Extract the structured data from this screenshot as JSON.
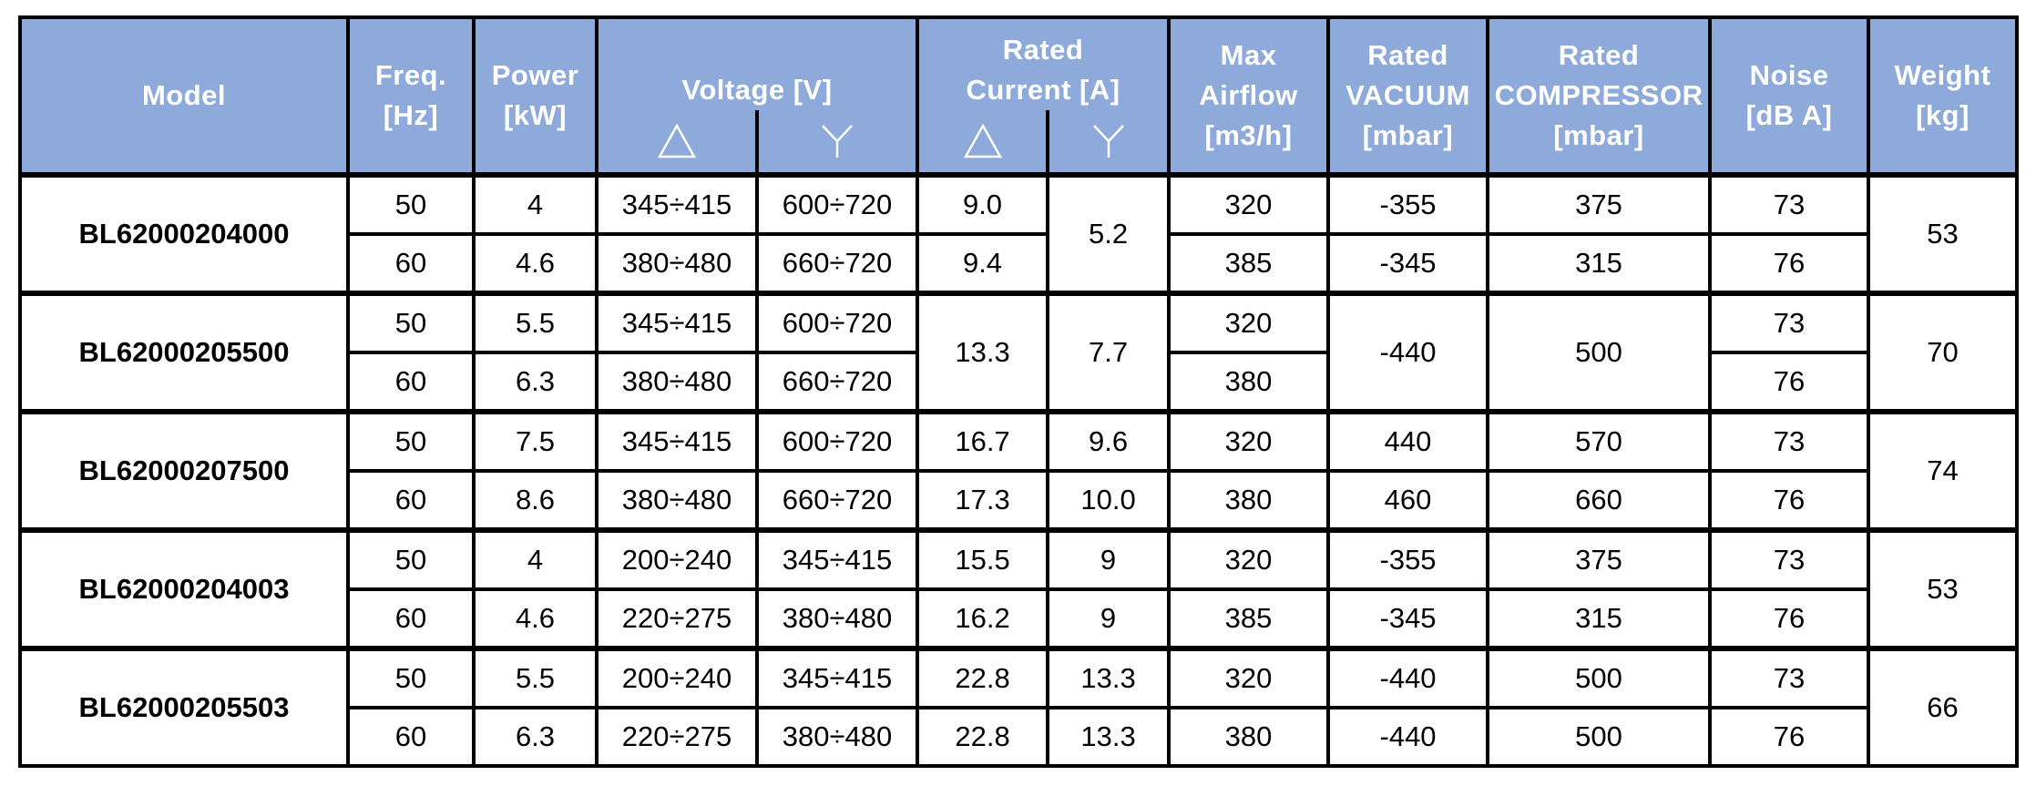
{
  "header": {
    "model": "Model",
    "freq": [
      "Freq.",
      "[Hz]"
    ],
    "power": [
      "Power",
      "[kW]"
    ],
    "voltage": "Voltage [V]",
    "rated_current": [
      "Rated",
      "Current [A]"
    ],
    "max_airflow": [
      "Max",
      "Airflow",
      "[m3/h]"
    ],
    "rated_vacuum": [
      "Rated",
      "VACUUM",
      "[mbar]"
    ],
    "rated_compressor": [
      "Rated",
      "COMPRESSOR",
      "[mbar]"
    ],
    "noise": [
      "Noise",
      "[dB A]"
    ],
    "weight": [
      "Weight",
      "[kg]"
    ],
    "delta_icon": "delta-connection-icon",
    "star_icon": "star-connection-icon"
  },
  "models": [
    {
      "name": "BL62000204000",
      "weight": "53",
      "rows": [
        {
          "freq": "50",
          "power": "4",
          "v_delta": "345÷415",
          "v_star": "600÷720",
          "i_delta": "9.0",
          "i_star": "5.2",
          "airflow": "320",
          "vacuum": "-355",
          "compressor": "375",
          "noise": "73"
        },
        {
          "freq": "60",
          "power": "4.6",
          "v_delta": "380÷480",
          "v_star": "660÷720",
          "i_delta": "9.4",
          "i_star": "5.2",
          "airflow": "385",
          "vacuum": "-345",
          "compressor": "315",
          "noise": "76"
        }
      ]
    },
    {
      "name": "BL62000205500",
      "weight": "70",
      "rows": [
        {
          "freq": "50",
          "power": "5.5",
          "v_delta": "345÷415",
          "v_star": "600÷720",
          "i_delta": "13.3",
          "i_star": "7.7",
          "airflow": "320",
          "vacuum": "-440",
          "compressor": "500",
          "noise": "73"
        },
        {
          "freq": "60",
          "power": "6.3",
          "v_delta": "380÷480",
          "v_star": "660÷720",
          "i_delta": "13.3",
          "i_star": "7.7",
          "airflow": "380",
          "vacuum": "-440",
          "compressor": "500",
          "noise": "76"
        }
      ]
    },
    {
      "name": "BL62000207500",
      "weight": "74",
      "rows": [
        {
          "freq": "50",
          "power": "7.5",
          "v_delta": "345÷415",
          "v_star": "600÷720",
          "i_delta": "16.7",
          "i_star": "9.6",
          "airflow": "320",
          "vacuum": "440",
          "compressor": "570",
          "noise": "73"
        },
        {
          "freq": "60",
          "power": "8.6",
          "v_delta": "380÷480",
          "v_star": "660÷720",
          "i_delta": "17.3",
          "i_star": "10.0",
          "airflow": "380",
          "vacuum": "460",
          "compressor": "660",
          "noise": "76"
        }
      ]
    },
    {
      "name": "BL62000204003",
      "weight": "53",
      "rows": [
        {
          "freq": "50",
          "power": "4",
          "v_delta": "200÷240",
          "v_star": "345÷415",
          "i_delta": "15.5",
          "i_star": "9",
          "airflow": "320",
          "vacuum": "-355",
          "compressor": "375",
          "noise": "73"
        },
        {
          "freq": "60",
          "power": "4.6",
          "v_delta": "220÷275",
          "v_star": "380÷480",
          "i_delta": "16.2",
          "i_star": "9",
          "airflow": "385",
          "vacuum": "-345",
          "compressor": "315",
          "noise": "76"
        }
      ]
    },
    {
      "name": "BL62000205503",
      "weight": "66",
      "rows": [
        {
          "freq": "50",
          "power": "5.5",
          "v_delta": "200÷240",
          "v_star": "345÷415",
          "i_delta": "22.8",
          "i_star": "13.3",
          "airflow": "320",
          "vacuum": "-440",
          "compressor": "500",
          "noise": "73"
        },
        {
          "freq": "60",
          "power": "6.3",
          "v_delta": "220÷275",
          "v_star": "380÷480",
          "i_delta": "22.8",
          "i_star": "13.3",
          "airflow": "380",
          "vacuum": "-440",
          "compressor": "500",
          "noise": "76"
        }
      ]
    }
  ],
  "colors": {
    "header_bg": "#8eaadb",
    "header_text": "#ffffff",
    "border": "#000000"
  }
}
